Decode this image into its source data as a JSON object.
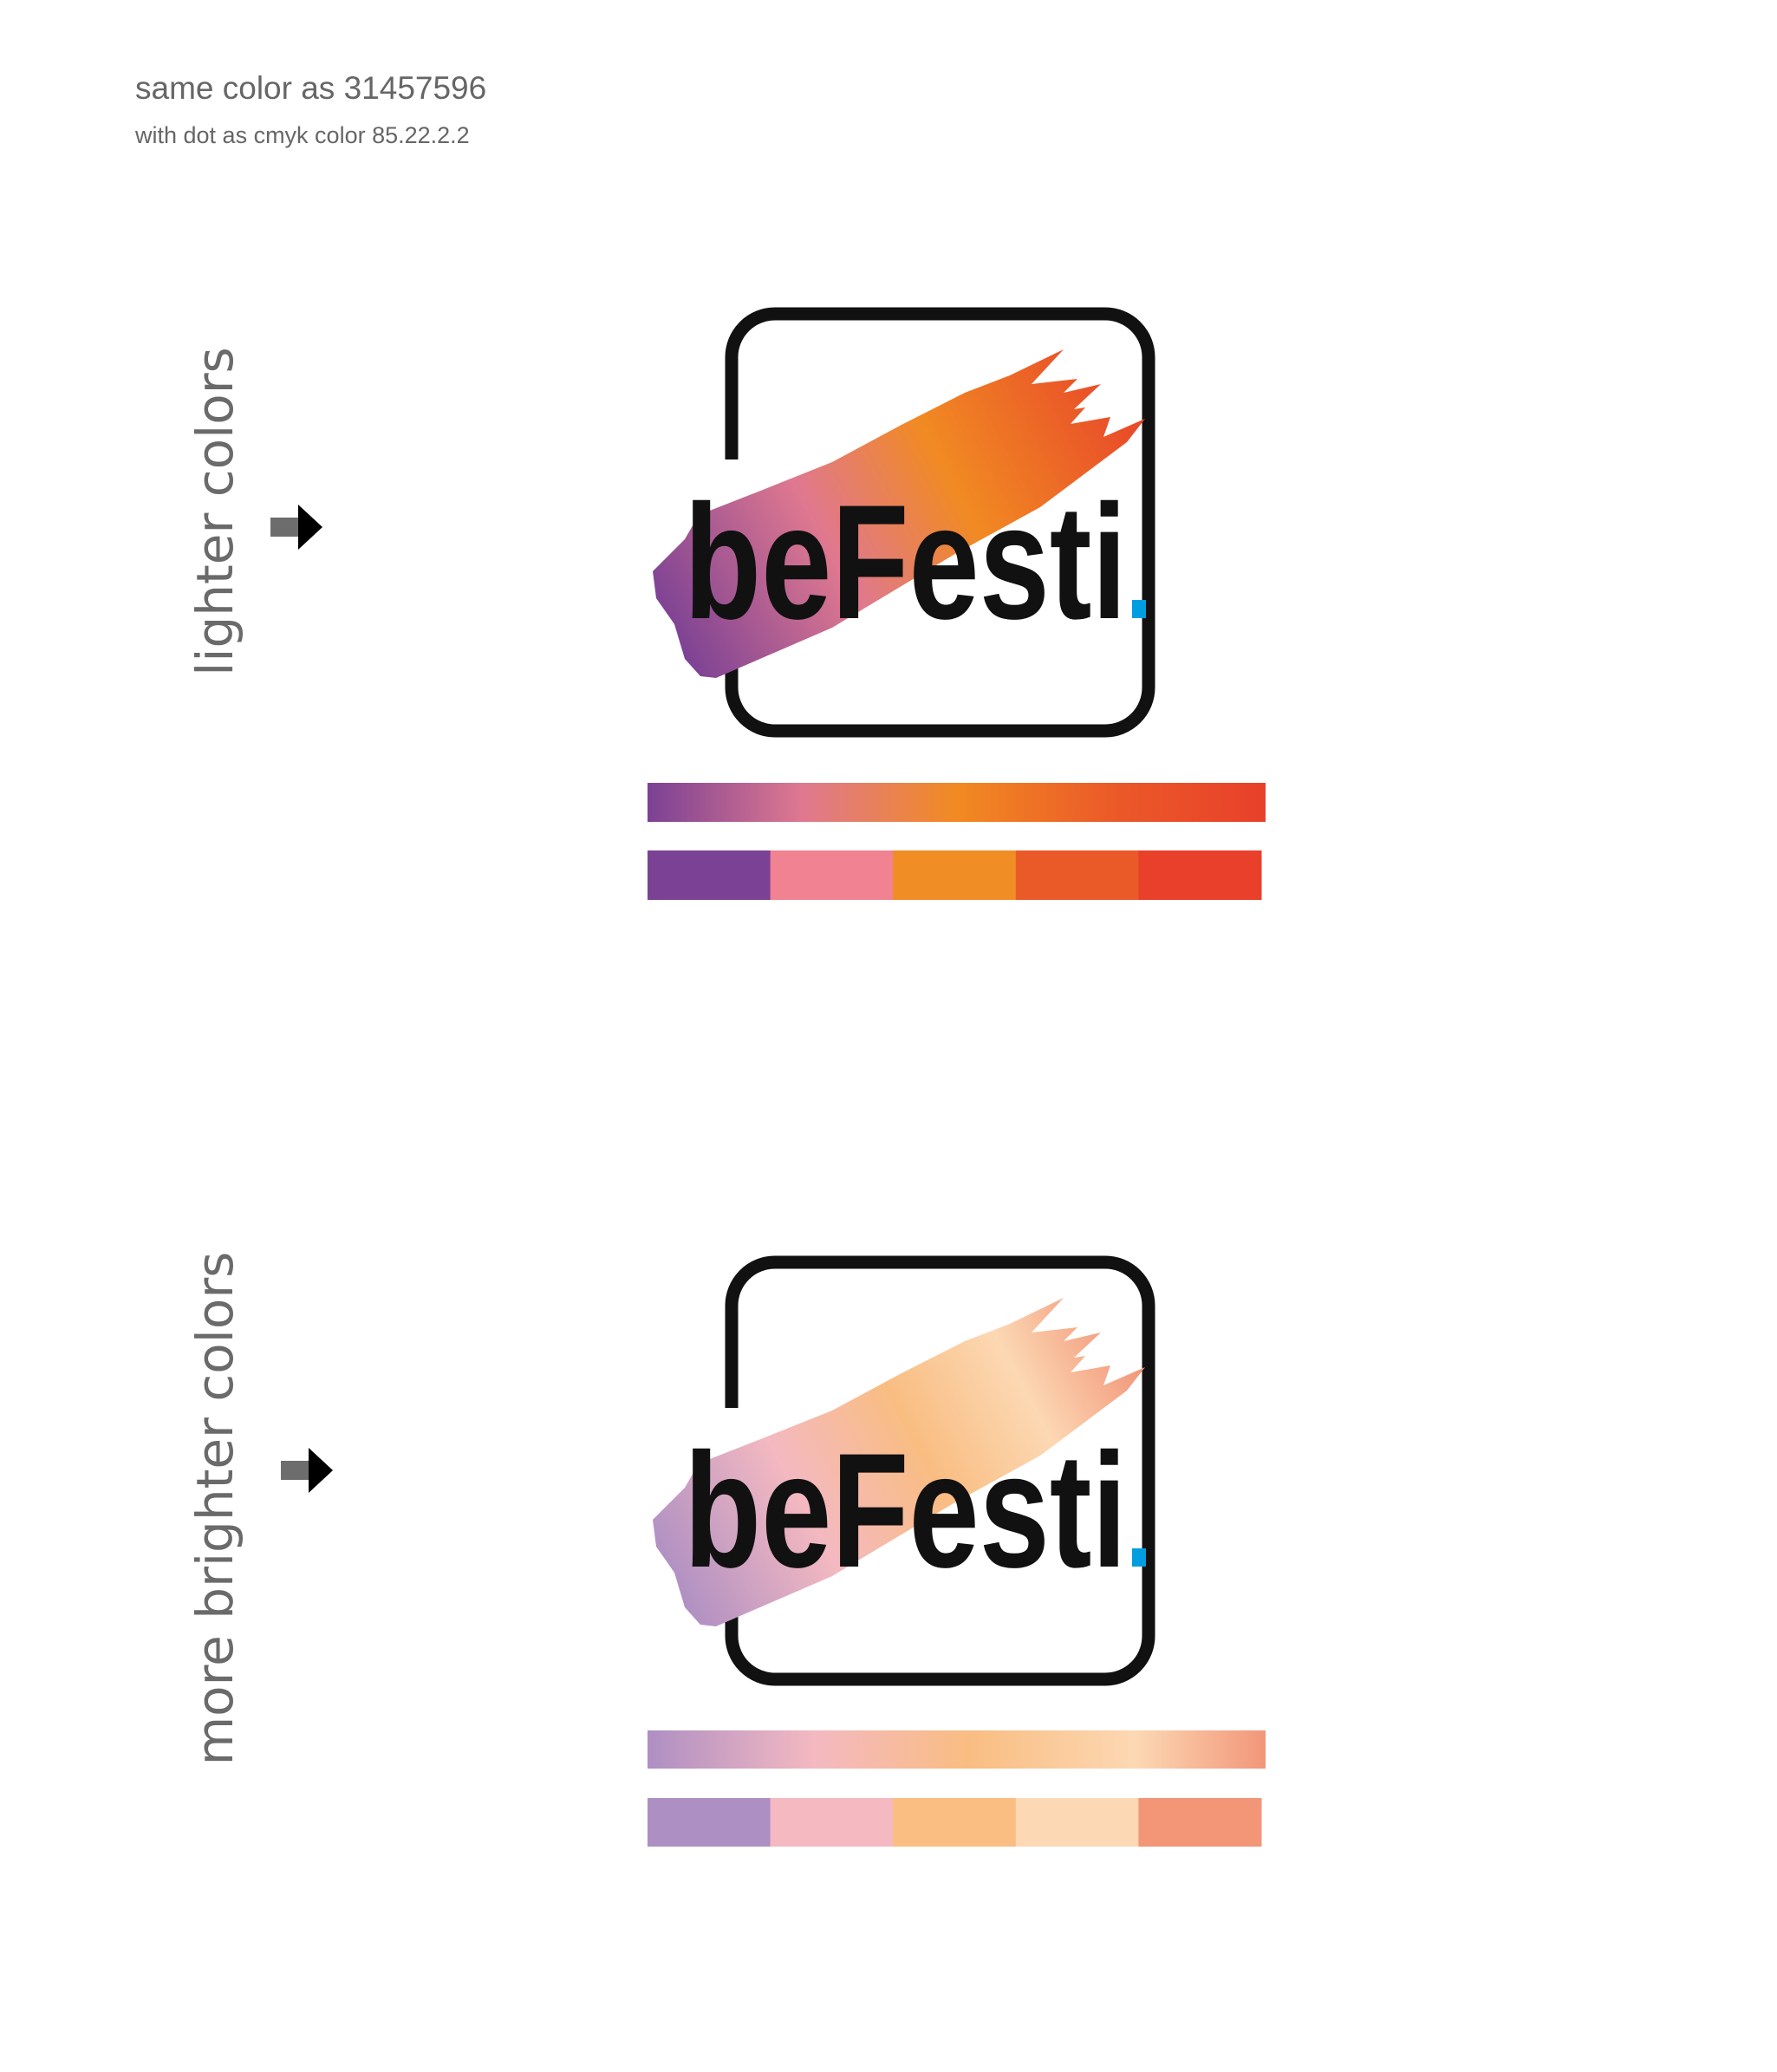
{
  "notes": {
    "line1": "same color as 31457596",
    "line2": "with dot as cmyk color 85.22.2.2"
  },
  "variants": [
    {
      "label": "lighter colors",
      "logo_text": "beFesti",
      "brush_gradient": [
        "#7b4194",
        "#df7890",
        "#f18a22",
        "#e8482a"
      ],
      "bar_gradient": [
        "#7b4194",
        "#df7890",
        "#f18a22",
        "#eb5a28",
        "#e8402a"
      ],
      "swatches": [
        "#7b4194",
        "#f08291",
        "#f18d25",
        "#ea5a29",
        "#e8402b"
      ]
    },
    {
      "label": "more brighter colors",
      "logo_text": "beFesti",
      "brush_gradient": [
        "#ae8fc3",
        "#f4b9c1",
        "#f9bd82",
        "#fcd8b3",
        "#f29679"
      ],
      "bar_gradient": [
        "#ae8fc3",
        "#f4b9c1",
        "#f9bd82",
        "#fcd8b3",
        "#f29679"
      ],
      "swatches": [
        "#ae8fc3",
        "#f5b9c1",
        "#fabe83",
        "#fcd8b5",
        "#f29677"
      ]
    }
  ],
  "colors": {
    "logo_frame": "#111111",
    "dot": "#009ee0",
    "note_text": "#666666",
    "arrow_shaft": "#6d6d6d",
    "arrow_head": "#000000"
  },
  "icons": {
    "arrow": "arrow-right-icon"
  }
}
